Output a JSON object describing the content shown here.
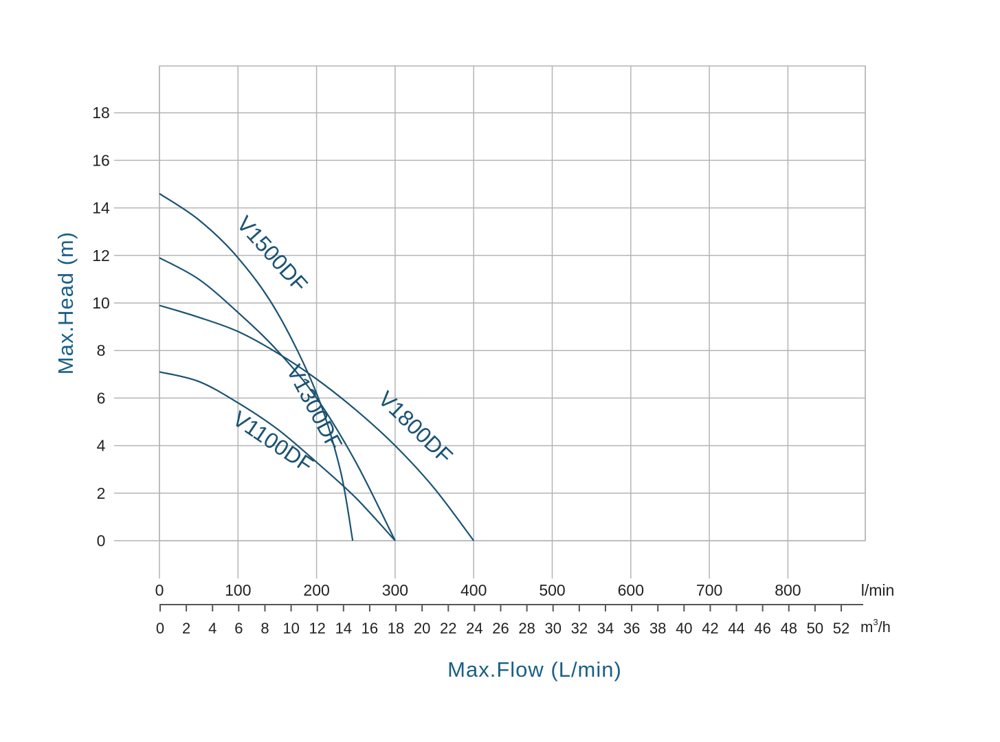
{
  "chart_data": {
    "type": "line",
    "ylabel": "Max.Head (m)",
    "xlabel": "Max.Flow (L/min)",
    "primary_x_unit": "l/min",
    "secondary_x_unit_base": "m",
    "secondary_x_unit_exp": "3",
    "secondary_x_unit_tail": "/h",
    "xlim": [
      0,
      900
    ],
    "ylim": [
      -2,
      20
    ],
    "x_ticks": [
      0,
      100,
      200,
      300,
      400,
      500,
      600,
      700,
      800
    ],
    "y_ticks": [
      0,
      2,
      4,
      6,
      8,
      10,
      12,
      14,
      16,
      18
    ],
    "secondary_x_ticks": [
      0,
      2,
      4,
      6,
      8,
      10,
      12,
      14,
      16,
      18,
      20,
      22,
      24,
      26,
      28,
      30,
      32,
      34,
      36,
      38,
      40,
      42,
      44,
      46,
      48,
      50,
      52
    ],
    "grid": true,
    "colors": {
      "series": "#1a5273",
      "title": "#1a5f86",
      "grid": "#b4b4b4",
      "axis": "#555555"
    },
    "series": [
      {
        "name": "V1500DF",
        "x": [
          0,
          50,
          100,
          150,
          200,
          230,
          246
        ],
        "y": [
          14.6,
          13.5,
          11.9,
          9.6,
          6.2,
          3.0,
          0
        ]
      },
      {
        "name": "V1300DF",
        "x": [
          0,
          50,
          100,
          150,
          200,
          250,
          300
        ],
        "y": [
          11.9,
          11.0,
          9.6,
          8.0,
          6.0,
          3.3,
          0
        ]
      },
      {
        "name": "V1800DF",
        "x": [
          0,
          50,
          100,
          150,
          200,
          250,
          300,
          350,
          400
        ],
        "y": [
          9.9,
          9.4,
          8.8,
          7.9,
          6.8,
          5.5,
          4.0,
          2.2,
          0
        ]
      },
      {
        "name": "V1100DF",
        "x": [
          0,
          50,
          100,
          150,
          200,
          250,
          300
        ],
        "y": [
          7.1,
          6.7,
          5.8,
          4.7,
          3.3,
          1.8,
          0
        ]
      }
    ]
  }
}
